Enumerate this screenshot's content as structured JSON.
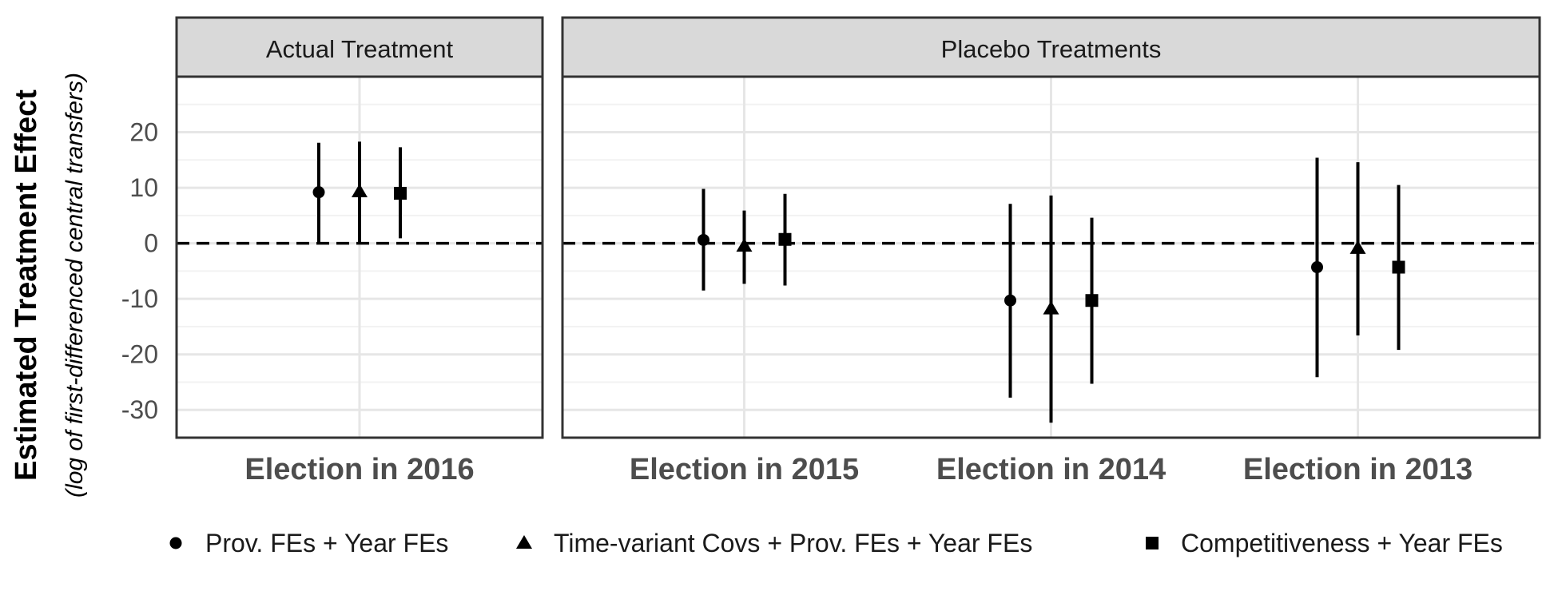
{
  "chart_data": {
    "type": "scatter",
    "subtype": "point-range (coefficient plot), faceted",
    "ylabel": "Estimated Treatment Effect",
    "ylabel_sub": "(log of first-differenced central transfers)",
    "ylim": [
      -35,
      30
    ],
    "yticks": [
      20,
      10,
      0,
      -10,
      -20,
      -30
    ],
    "y_tick_labels": [
      "20",
      "10",
      "0",
      "-10",
      "-20",
      "-30"
    ],
    "reference_line": {
      "y": 0,
      "style": "dashed"
    },
    "grid": true,
    "legend_position": "bottom",
    "series": [
      {
        "name": "Prov. FEs + Year FEs",
        "marker": "circle"
      },
      {
        "name": "Time-variant Covs + Prov. FEs + Year FEs",
        "marker": "triangle"
      },
      {
        "name": "Competitiveness + Year FEs",
        "marker": "square"
      }
    ],
    "facets": [
      {
        "title": "Actual Treatment",
        "categories": [
          "Election in 2016"
        ],
        "estimates": [
          [
            {
              "estimate": 9.2,
              "lower": 0.2,
              "upper": 18.1
            },
            {
              "estimate": 9.3,
              "lower": 0.2,
              "upper": 18.3
            },
            {
              "estimate": 9.0,
              "lower": 0.9,
              "upper": 17.3
            }
          ]
        ]
      },
      {
        "title": "Placebo Treatments",
        "categories": [
          "Election in 2015",
          "Election in 2014",
          "Election in 2013"
        ],
        "estimates": [
          [
            {
              "estimate": 0.6,
              "lower": -8.5,
              "upper": 9.8
            },
            {
              "estimate": -0.5,
              "lower": -7.3,
              "upper": 5.9
            },
            {
              "estimate": 0.7,
              "lower": -7.6,
              "upper": 8.9
            }
          ],
          [
            {
              "estimate": -10.3,
              "lower": -27.8,
              "upper": 7.1
            },
            {
              "estimate": -11.8,
              "lower": -32.3,
              "upper": 8.6
            },
            {
              "estimate": -10.3,
              "lower": -25.3,
              "upper": 4.6
            }
          ],
          [
            {
              "estimate": -4.3,
              "lower": -24.1,
              "upper": 15.4
            },
            {
              "estimate": -0.9,
              "lower": -16.6,
              "upper": 14.6
            },
            {
              "estimate": -4.3,
              "lower": -19.2,
              "upper": 10.5
            }
          ]
        ]
      }
    ]
  }
}
